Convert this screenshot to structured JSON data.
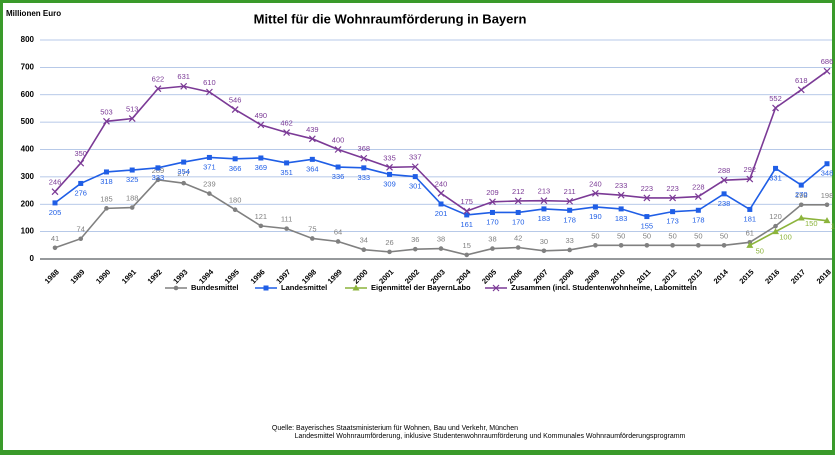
{
  "chart_data": {
    "type": "line",
    "title": "Mittel für die Wohnraumförderung in Bayern",
    "y_label": "Millionen Euro",
    "categories": [
      "1988",
      "1989",
      "1990",
      "1991",
      "1992",
      "1993",
      "1994",
      "1995",
      "1996",
      "1997",
      "1998",
      "1999",
      "2000",
      "2001",
      "2002",
      "2003",
      "2004",
      "2005",
      "2006",
      "2007",
      "2008",
      "2009",
      "2010",
      "2011",
      "2012",
      "2013",
      "2014",
      "2015",
      "2016",
      "2017",
      "2018"
    ],
    "series": [
      {
        "name": "Bundesmittel",
        "color": "#808080",
        "marker": "circle",
        "values": [
          41,
          74,
          185,
          188,
          289,
          277,
          239,
          180,
          121,
          111,
          75,
          64,
          34,
          26,
          36,
          38,
          15,
          38,
          42,
          30,
          33,
          50,
          50,
          50,
          50,
          50,
          50,
          61,
          120,
          198,
          198
        ]
      },
      {
        "name": "Landesmittel",
        "color": "#1f5ee6",
        "marker": "square",
        "values": [
          205,
          276,
          318,
          325,
          333,
          354,
          371,
          366,
          369,
          351,
          364,
          336,
          333,
          309,
          301,
          201,
          161,
          170,
          170,
          183,
          178,
          190,
          183,
          155,
          173,
          178,
          238,
          181,
          331,
          270,
          348
        ]
      },
      {
        "name": "Eigenmittel der BayernLabo",
        "color": "#8cb43c",
        "marker": "triangle",
        "values": [
          null,
          null,
          null,
          null,
          null,
          null,
          null,
          null,
          null,
          null,
          null,
          null,
          null,
          null,
          null,
          null,
          null,
          null,
          null,
          null,
          null,
          null,
          null,
          null,
          null,
          null,
          null,
          50,
          100,
          150,
          140
        ]
      },
      {
        "name": "Zusammen (incl. Studentenwohnheime, Labomitteln",
        "color": "#7b3a96",
        "marker": "x",
        "values": [
          246,
          350,
          503,
          513,
          622,
          631,
          610,
          546,
          490,
          462,
          439,
          400,
          368,
          335,
          337,
          240,
          175,
          209,
          212,
          213,
          211,
          240,
          233,
          223,
          223,
          228,
          288,
          292,
          552,
          618,
          686
        ]
      }
    ],
    "ylim": [
      0,
      800
    ],
    "yticks": [
      0,
      100,
      200,
      300,
      400,
      500,
      600,
      700,
      800
    ],
    "grid": true,
    "source": [
      "Quelle: Bayerisches Staatsministerium für Wohnen, Bau und Verkehr, München",
      "Landesmittel Wohnraumförderung, inklusive Studentenwohnraumförderung und Kommunales Wohnraumförderungsprogramm"
    ]
  }
}
